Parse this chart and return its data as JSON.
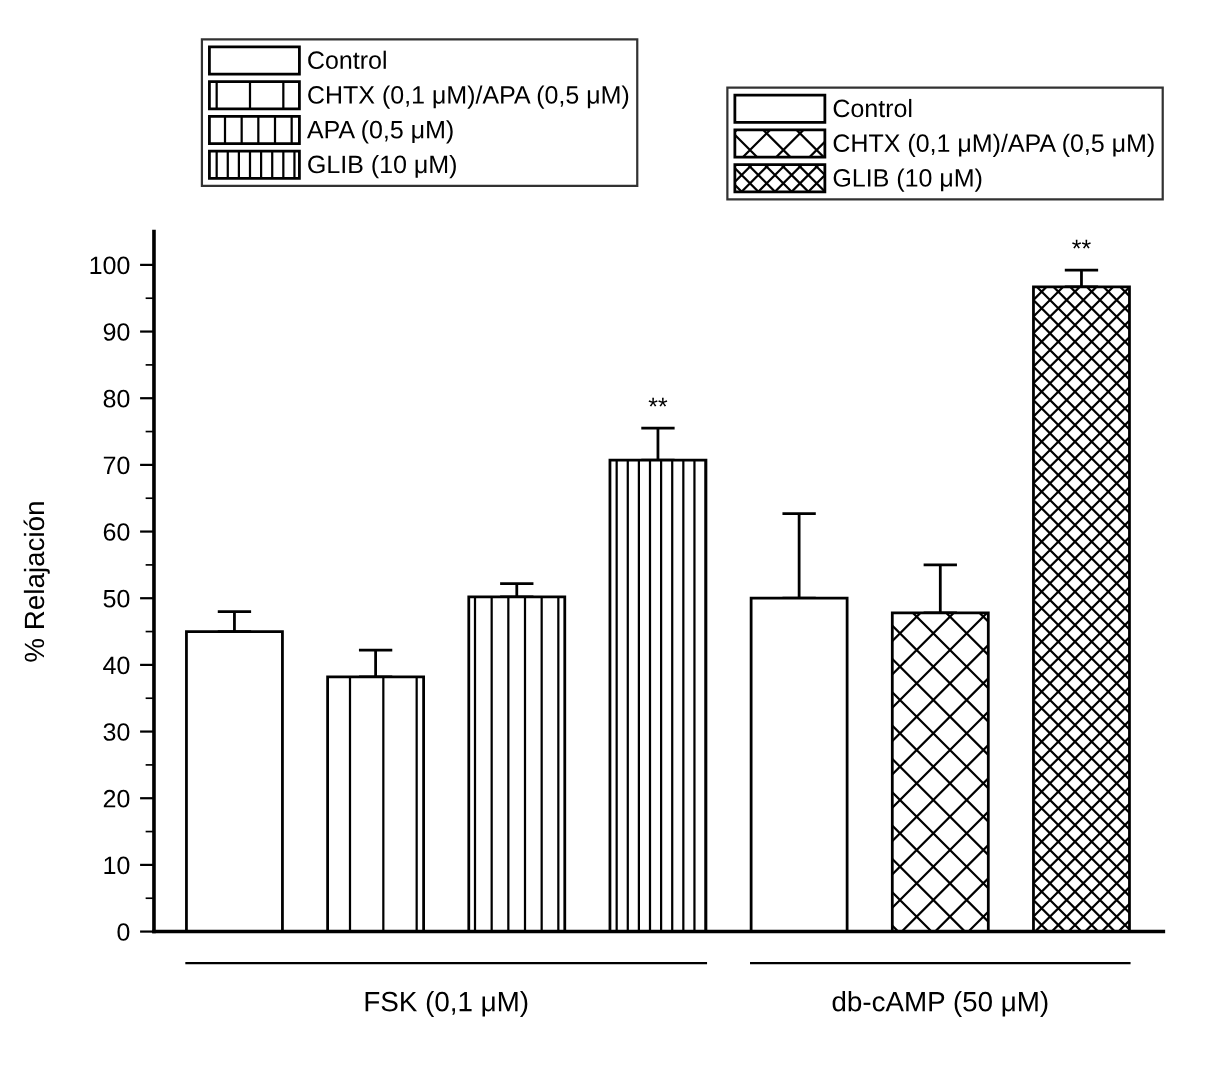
{
  "chart_data": {
    "type": "bar",
    "ylabel": "% Relajación",
    "categories": [
      null,
      null,
      null,
      null,
      null,
      null,
      null
    ],
    "series": [
      {
        "name": "Control",
        "color": "#ffffff",
        "values": [
          45,
          null,
          null,
          null,
          null,
          null,
          null
        ],
        "errors": [
          3,
          null,
          null,
          null,
          null,
          null,
          null
        ]
      },
      {
        "name": "CHTX (0,1 μM)/APA (0,5 μM)",
        "color": "#000000",
        "values": [
          null,
          38.2,
          null,
          null,
          null,
          null,
          null
        ],
        "errors": [
          null,
          4,
          null,
          null,
          null,
          null,
          null
        ]
      },
      {
        "name": "APA (0,5 μM)",
        "color": "#000000",
        "values": [
          null,
          null,
          50.2,
          null,
          null,
          null,
          null
        ],
        "errors": [
          null,
          null,
          2,
          null,
          null,
          null,
          null
        ]
      },
      {
        "name": "GLIB (10 μM)",
        "color": "#000000",
        "values": [
          null,
          null,
          null,
          70.7,
          null,
          null,
          null
        ],
        "errors": [
          null,
          null,
          null,
          4.8,
          null,
          null,
          null
        ]
      },
      {
        "name": "Control",
        "color": "#ffffff",
        "values": [
          null,
          null,
          null,
          null,
          50,
          null,
          null
        ],
        "errors": [
          null,
          null,
          null,
          null,
          12.7,
          null,
          null
        ]
      },
      {
        "name": "CHTX (0,1 μM)/APA (0,5 μM)",
        "color": "#000000",
        "values": [
          null,
          null,
          null,
          null,
          null,
          47.8,
          null
        ],
        "errors": [
          null,
          null,
          null,
          null,
          null,
          7.2,
          null
        ]
      },
      {
        "name": "GLIB (10 μM)",
        "color": "#000000",
        "values": [
          null,
          null,
          null,
          null,
          null,
          null,
          96.7
        ],
        "errors": [
          null,
          null,
          null,
          null,
          null,
          null,
          2.5
        ]
      }
    ],
    "ylim": [
      0,
      105
    ],
    "yticks": [
      0,
      10,
      20,
      30,
      40,
      50,
      60,
      70,
      80,
      90,
      100
    ],
    "legend": "top",
    "annotations": [
      "**",
      "**",
      "FSK (0,1 μM)",
      "db-cAMP (50 μM)"
    ]
  }
}
